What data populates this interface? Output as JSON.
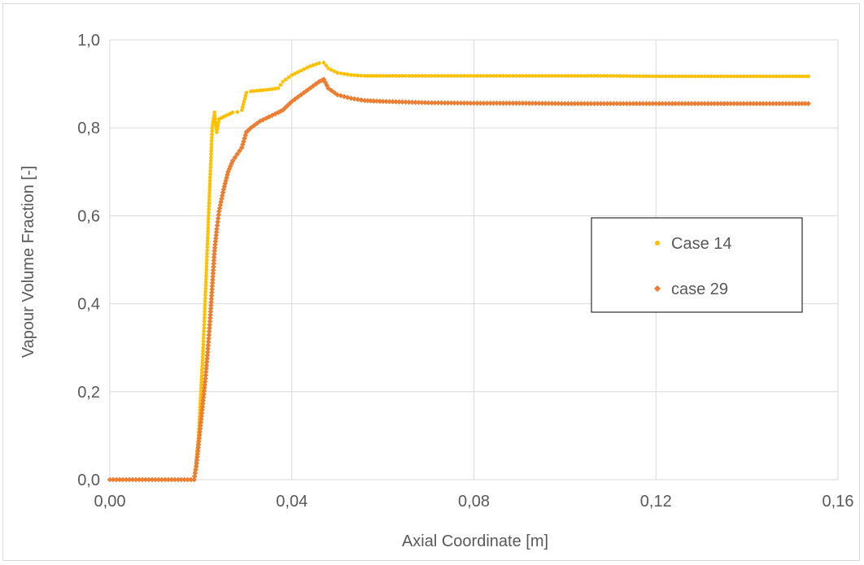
{
  "chart_data": {
    "type": "scatter",
    "title": "",
    "xlabel": "Axial Coordinate [m]",
    "ylabel": "Vapour Volume Fraction [-]",
    "xlim": [
      0,
      0.16
    ],
    "ylim": [
      0,
      1.0
    ],
    "x_ticks": [
      0,
      0.04,
      0.08,
      0.12,
      0.16
    ],
    "x_tick_labels": [
      "0,00",
      "0,04",
      "0,08",
      "0,12",
      "0,16"
    ],
    "y_ticks": [
      0,
      0.2,
      0.4,
      0.6,
      0.8,
      1.0
    ],
    "y_tick_labels": [
      "0,0",
      "0,2",
      "0,4",
      "0,6",
      "0,8",
      "1,0"
    ],
    "grid": true,
    "legend_position": "center-right",
    "series": [
      {
        "name": "Case 14",
        "color": "#FFC000",
        "marker": "circle",
        "points": [
          [
            0.0,
            0.0
          ],
          [
            0.005,
            0.0
          ],
          [
            0.01,
            0.0
          ],
          [
            0.015,
            0.0
          ],
          [
            0.0185,
            0.0
          ],
          [
            0.019,
            0.04
          ],
          [
            0.0195,
            0.1
          ],
          [
            0.02,
            0.2
          ],
          [
            0.0205,
            0.3
          ],
          [
            0.021,
            0.42
          ],
          [
            0.0215,
            0.55
          ],
          [
            0.022,
            0.68
          ],
          [
            0.0225,
            0.8
          ],
          [
            0.023,
            0.835
          ],
          [
            0.0235,
            0.79
          ],
          [
            0.024,
            0.82
          ],
          [
            0.025,
            0.825
          ],
          [
            0.026,
            0.83
          ],
          [
            0.027,
            0.835
          ],
          [
            0.028,
            0.836
          ],
          [
            0.029,
            0.84
          ],
          [
            0.03,
            0.88
          ],
          [
            0.031,
            0.883
          ],
          [
            0.033,
            0.885
          ],
          [
            0.035,
            0.887
          ],
          [
            0.037,
            0.89
          ],
          [
            0.038,
            0.905
          ],
          [
            0.04,
            0.92
          ],
          [
            0.042,
            0.93
          ],
          [
            0.044,
            0.94
          ],
          [
            0.046,
            0.947
          ],
          [
            0.047,
            0.948
          ],
          [
            0.048,
            0.935
          ],
          [
            0.05,
            0.925
          ],
          [
            0.053,
            0.92
          ],
          [
            0.056,
            0.918
          ],
          [
            0.06,
            0.918
          ],
          [
            0.07,
            0.918
          ],
          [
            0.08,
            0.918
          ],
          [
            0.09,
            0.918
          ],
          [
            0.1,
            0.918
          ],
          [
            0.11,
            0.918
          ],
          [
            0.12,
            0.917
          ],
          [
            0.13,
            0.917
          ],
          [
            0.14,
            0.917
          ],
          [
            0.15,
            0.917
          ],
          [
            0.1535,
            0.917
          ]
        ]
      },
      {
        "name": "case 29",
        "color": "#ED7D31",
        "marker": "diamond",
        "points": [
          [
            0.0,
            0.0
          ],
          [
            0.005,
            0.0
          ],
          [
            0.01,
            0.0
          ],
          [
            0.015,
            0.0
          ],
          [
            0.0185,
            0.0
          ],
          [
            0.019,
            0.03
          ],
          [
            0.0195,
            0.08
          ],
          [
            0.02,
            0.13
          ],
          [
            0.0205,
            0.18
          ],
          [
            0.021,
            0.23
          ],
          [
            0.0215,
            0.29
          ],
          [
            0.022,
            0.36
          ],
          [
            0.0225,
            0.44
          ],
          [
            0.023,
            0.52
          ],
          [
            0.0235,
            0.57
          ],
          [
            0.024,
            0.61
          ],
          [
            0.025,
            0.66
          ],
          [
            0.026,
            0.7
          ],
          [
            0.027,
            0.725
          ],
          [
            0.028,
            0.74
          ],
          [
            0.029,
            0.755
          ],
          [
            0.03,
            0.79
          ],
          [
            0.031,
            0.8
          ],
          [
            0.033,
            0.815
          ],
          [
            0.035,
            0.825
          ],
          [
            0.037,
            0.835
          ],
          [
            0.038,
            0.84
          ],
          [
            0.04,
            0.86
          ],
          [
            0.042,
            0.875
          ],
          [
            0.044,
            0.89
          ],
          [
            0.046,
            0.905
          ],
          [
            0.047,
            0.91
          ],
          [
            0.048,
            0.89
          ],
          [
            0.05,
            0.875
          ],
          [
            0.053,
            0.867
          ],
          [
            0.056,
            0.862
          ],
          [
            0.06,
            0.86
          ],
          [
            0.07,
            0.857
          ],
          [
            0.08,
            0.856
          ],
          [
            0.09,
            0.856
          ],
          [
            0.1,
            0.855
          ],
          [
            0.11,
            0.855
          ],
          [
            0.12,
            0.855
          ],
          [
            0.13,
            0.855
          ],
          [
            0.14,
            0.855
          ],
          [
            0.15,
            0.855
          ],
          [
            0.1535,
            0.855
          ]
        ]
      }
    ]
  }
}
